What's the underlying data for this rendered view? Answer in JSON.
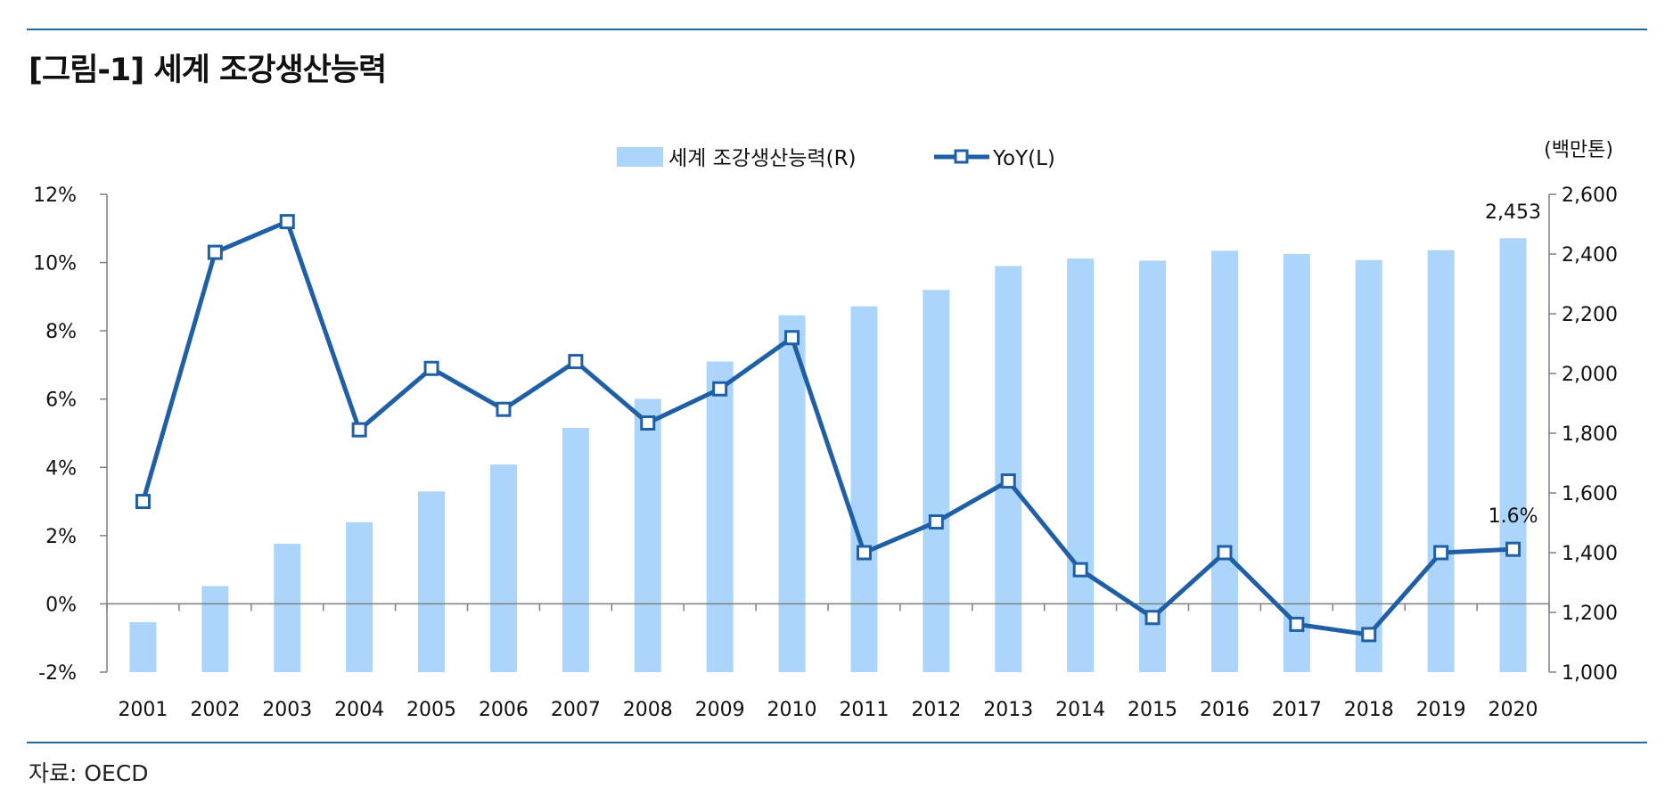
{
  "title": "[그림-1] 세계 조강생산능력",
  "source": "자료: OECD",
  "colors": {
    "bar": "#acd5fb",
    "line": "#1f5fa5",
    "axis": "#7f7f7f",
    "rule": "#1f6aa5"
  },
  "chart_data": {
    "type": "bar+line",
    "categories": [
      "2001",
      "2002",
      "2003",
      "2004",
      "2005",
      "2006",
      "2007",
      "2008",
      "2009",
      "2010",
      "2011",
      "2012",
      "2013",
      "2014",
      "2015",
      "2016",
      "2017",
      "2018",
      "2019",
      "2020"
    ],
    "series": [
      {
        "name": "세계 조강생산능력(R)",
        "type": "bar",
        "axis": "right",
        "values": [
          1167,
          1288,
          1430,
          1502,
          1605,
          1695,
          1818,
          1915,
          2040,
          2195,
          2225,
          2280,
          2360,
          2385,
          2378,
          2411,
          2400,
          2380,
          2413,
          2453
        ]
      },
      {
        "name": "YoY(L)",
        "type": "line",
        "axis": "left",
        "values": [
          3.0,
          10.3,
          11.2,
          5.1,
          6.9,
          5.7,
          7.1,
          5.3,
          6.3,
          7.8,
          1.5,
          2.4,
          3.6,
          1.0,
          -0.4,
          1.5,
          -0.6,
          -0.9,
          1.5,
          1.6
        ]
      }
    ],
    "y_left": {
      "range": [
        -2,
        12
      ],
      "ticks": [
        "12%",
        "10%",
        "8%",
        "6%",
        "4%",
        "2%",
        "0%",
        "-2%"
      ]
    },
    "y_right": {
      "range": [
        1000,
        2600
      ],
      "ticks": [
        "2,600",
        "2,400",
        "2,200",
        "2,000",
        "1,800",
        "1,600",
        "1,400",
        "1,200",
        "1,000"
      ],
      "unit": "(백만톤)"
    },
    "annotations": {
      "last_bar": "2,453",
      "last_line": "1.6%"
    },
    "legend": {
      "position": "top-center",
      "items": [
        "세계 조강생산능력(R)",
        "YoY(L)"
      ]
    },
    "grid": false
  }
}
